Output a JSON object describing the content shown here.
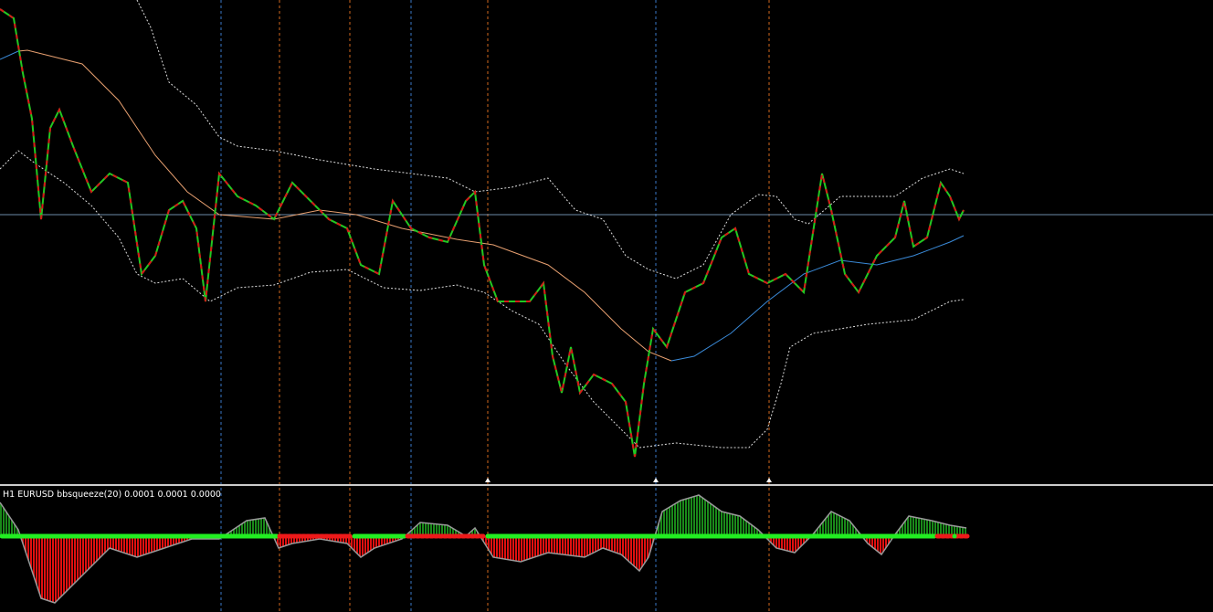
{
  "indicator_label": {
    "text": "H1 EURUSD bbsqueeze(20) 0.0001 0.0001 0.0000"
  }
}
